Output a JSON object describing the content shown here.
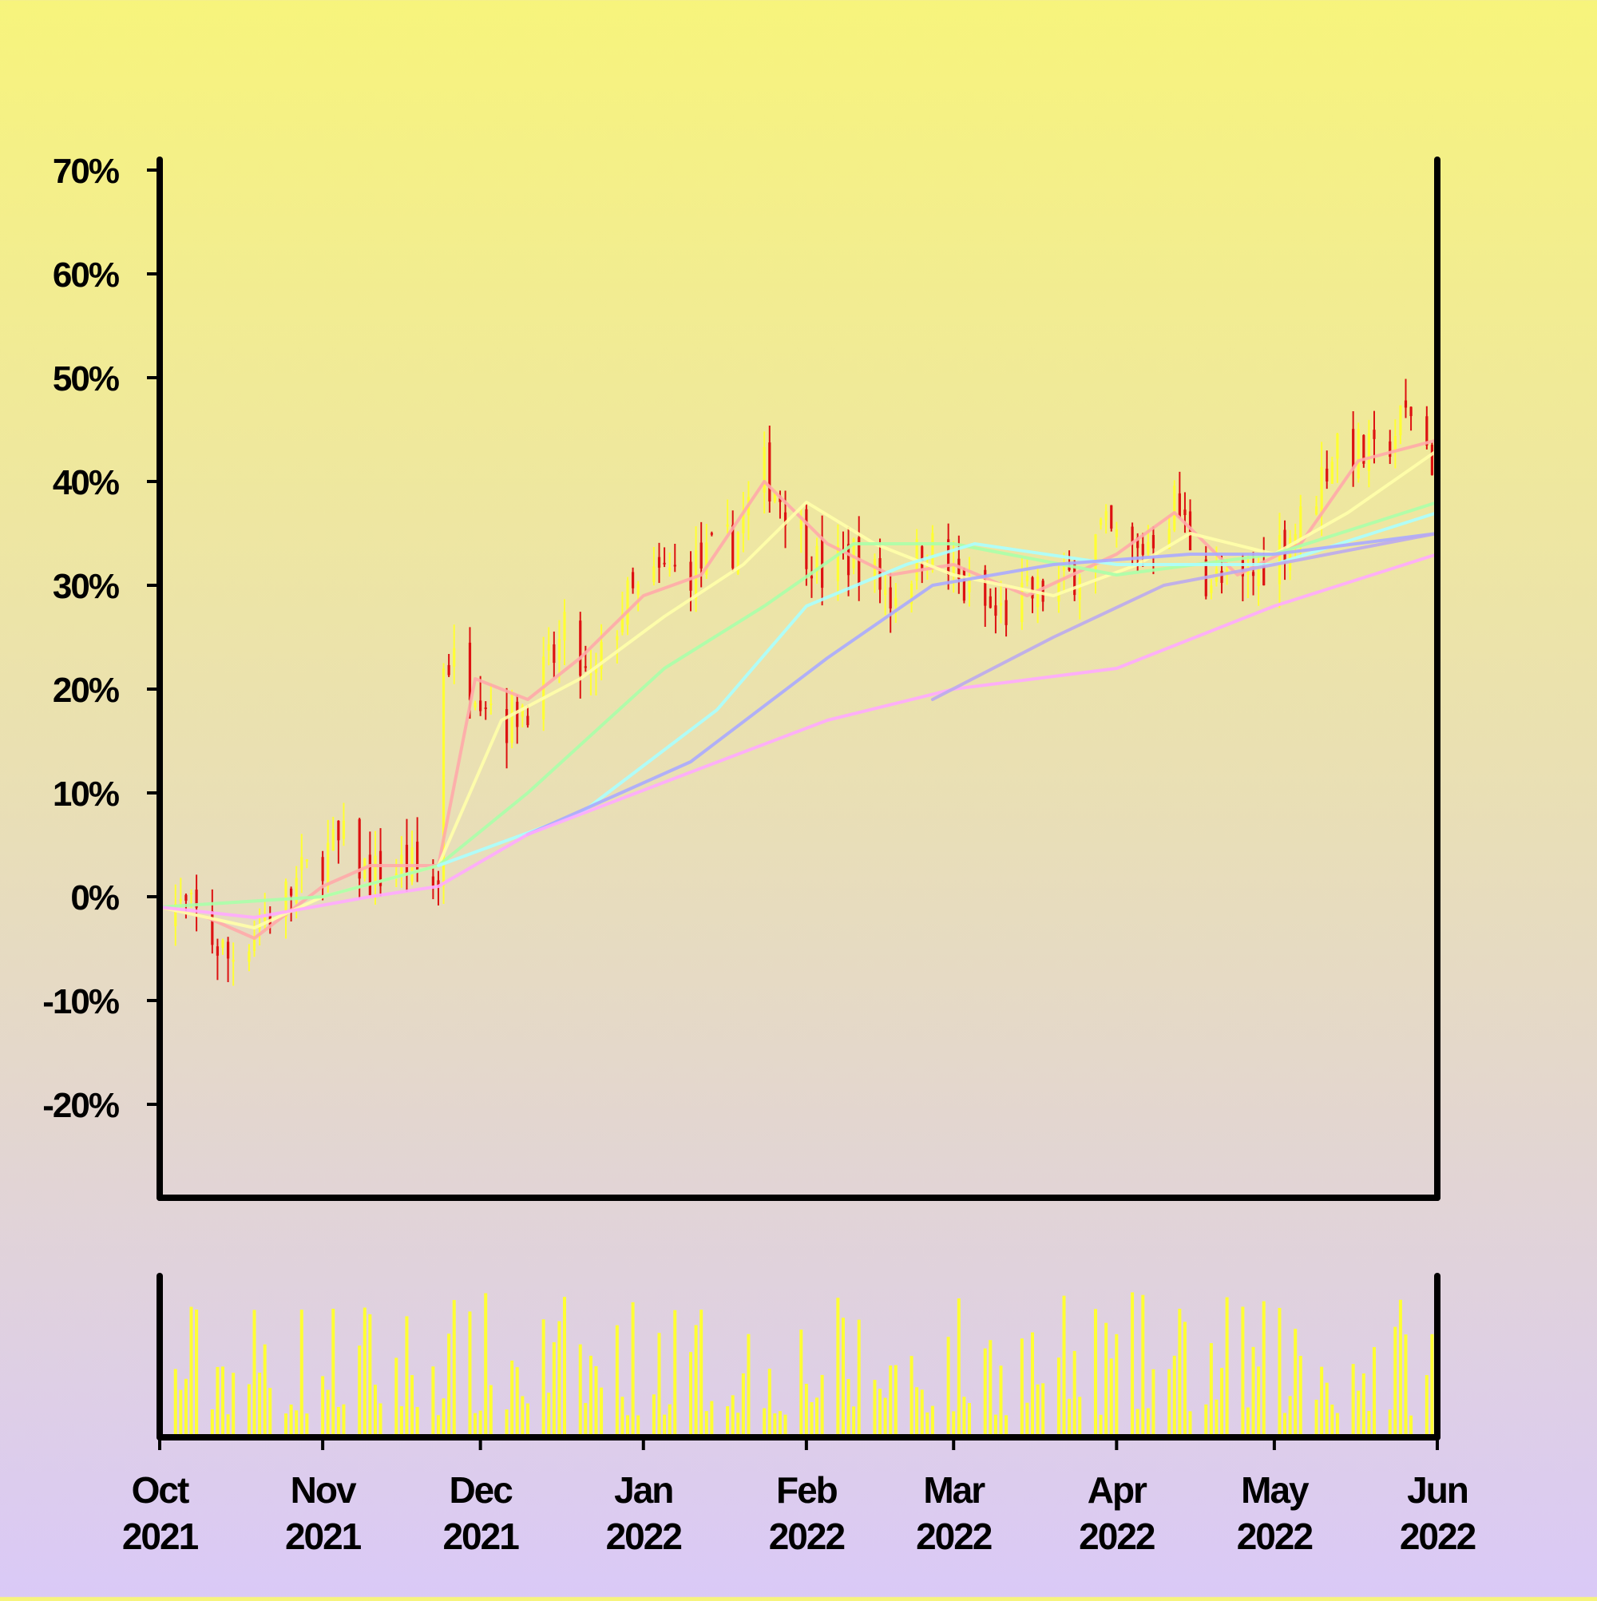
{
  "chart_data": {
    "type": "candlestick",
    "title": "",
    "xlabel": "",
    "ylabel": "",
    "y_unit": "%",
    "ylim": [
      -29,
      71
    ],
    "y_ticks": [
      {
        "value": 70,
        "label": "70%"
      },
      {
        "value": 60,
        "label": "60%"
      },
      {
        "value": 50,
        "label": "50%"
      },
      {
        "value": 40,
        "label": "40%"
      },
      {
        "value": 30,
        "label": "30%"
      },
      {
        "value": 20,
        "label": "20%"
      },
      {
        "value": 10,
        "label": "10%"
      },
      {
        "value": 0,
        "label": "0%"
      },
      {
        "value": -10,
        "label": "-10%"
      },
      {
        "value": -20,
        "label": "-20%"
      }
    ],
    "x_range": [
      "2021-10-01",
      "2022-06-01"
    ],
    "x_ticks": [
      {
        "date": "2021-10-01",
        "month": "Oct",
        "year": "2021"
      },
      {
        "date": "2021-11-01",
        "month": "Nov",
        "year": "2021"
      },
      {
        "date": "2021-12-01",
        "month": "Dec",
        "year": "2021"
      },
      {
        "date": "2022-01-01",
        "month": "Jan",
        "year": "2022"
      },
      {
        "date": "2022-02-01",
        "month": "Feb",
        "year": "2022"
      },
      {
        "date": "2022-03-01",
        "month": "Mar",
        "year": "2022"
      },
      {
        "date": "2022-04-01",
        "month": "Apr",
        "year": "2022"
      },
      {
        "date": "2022-05-01",
        "month": "May",
        "year": "2022"
      },
      {
        "date": "2022-06-01",
        "month": "Jun",
        "year": "2022"
      }
    ],
    "colors": {
      "up": "#ffff33",
      "down": "#dd1111",
      "volume": "#ffff33",
      "axis": "#000000",
      "background_top": "#f7f47c",
      "background_bottom": "#dac9f7"
    },
    "price_path": [
      {
        "date": "2021-10-01",
        "value": 0
      },
      {
        "date": "2021-10-08",
        "value": -2
      },
      {
        "date": "2021-10-14",
        "value": -6
      },
      {
        "date": "2021-10-19",
        "value": -3
      },
      {
        "date": "2021-10-25",
        "value": 0
      },
      {
        "date": "2021-11-01",
        "value": 4
      },
      {
        "date": "2021-11-05",
        "value": 5
      },
      {
        "date": "2021-11-10",
        "value": 2
      },
      {
        "date": "2021-11-17",
        "value": 3
      },
      {
        "date": "2021-11-23",
        "value": 1
      },
      {
        "date": "2021-11-24",
        "value": 23
      },
      {
        "date": "2021-11-30",
        "value": 21
      },
      {
        "date": "2021-12-06",
        "value": 17
      },
      {
        "date": "2021-12-12",
        "value": 20
      },
      {
        "date": "2021-12-17",
        "value": 25
      },
      {
        "date": "2021-12-22",
        "value": 20
      },
      {
        "date": "2021-12-28",
        "value": 28
      },
      {
        "date": "2022-01-05",
        "value": 31
      },
      {
        "date": "2022-01-12",
        "value": 32
      },
      {
        "date": "2022-01-18",
        "value": 34
      },
      {
        "date": "2022-01-24",
        "value": 41
      },
      {
        "date": "2022-01-28",
        "value": 38
      },
      {
        "date": "2022-02-04",
        "value": 31
      },
      {
        "date": "2022-02-10",
        "value": 33
      },
      {
        "date": "2022-02-17",
        "value": 29
      },
      {
        "date": "2022-02-24",
        "value": 34
      },
      {
        "date": "2022-03-02",
        "value": 30
      },
      {
        "date": "2022-03-09",
        "value": 27
      },
      {
        "date": "2022-03-16",
        "value": 29
      },
      {
        "date": "2022-03-22",
        "value": 30
      },
      {
        "date": "2022-03-29",
        "value": 35
      },
      {
        "date": "2022-04-05",
        "value": 33
      },
      {
        "date": "2022-04-12",
        "value": 38
      },
      {
        "date": "2022-04-18",
        "value": 31
      },
      {
        "date": "2022-04-24",
        "value": 29
      },
      {
        "date": "2022-04-30",
        "value": 33
      },
      {
        "date": "2022-05-06",
        "value": 36
      },
      {
        "date": "2022-05-13",
        "value": 44
      },
      {
        "date": "2022-05-20",
        "value": 42
      },
      {
        "date": "2022-05-27",
        "value": 47
      },
      {
        "date": "2022-06-01",
        "value": 41
      }
    ],
    "moving_averages": [
      {
        "color": "#ffaaaa",
        "points": [
          {
            "date": "2021-10-01",
            "value": -1
          },
          {
            "date": "2021-10-10",
            "value": -2
          },
          {
            "date": "2021-10-19",
            "value": -4
          },
          {
            "date": "2021-11-01",
            "value": 1
          },
          {
            "date": "2021-11-10",
            "value": 3
          },
          {
            "date": "2021-11-23",
            "value": 3
          },
          {
            "date": "2021-11-30",
            "value": 21
          },
          {
            "date": "2021-12-10",
            "value": 19
          },
          {
            "date": "2021-12-20",
            "value": 23
          },
          {
            "date": "2022-01-01",
            "value": 29
          },
          {
            "date": "2022-01-12",
            "value": 31
          },
          {
            "date": "2022-01-24",
            "value": 40
          },
          {
            "date": "2022-02-05",
            "value": 34
          },
          {
            "date": "2022-02-17",
            "value": 31
          },
          {
            "date": "2022-03-01",
            "value": 32
          },
          {
            "date": "2022-03-15",
            "value": 29
          },
          {
            "date": "2022-04-01",
            "value": 33
          },
          {
            "date": "2022-04-12",
            "value": 37
          },
          {
            "date": "2022-04-24",
            "value": 31
          },
          {
            "date": "2022-05-06",
            "value": 34
          },
          {
            "date": "2022-05-17",
            "value": 42
          },
          {
            "date": "2022-06-01",
            "value": 44
          }
        ]
      },
      {
        "color": "#ffffaa",
        "points": [
          {
            "date": "2021-10-01",
            "value": -1
          },
          {
            "date": "2021-10-19",
            "value": -3
          },
          {
            "date": "2021-11-01",
            "value": 0
          },
          {
            "date": "2021-11-23",
            "value": 3
          },
          {
            "date": "2021-12-05",
            "value": 17
          },
          {
            "date": "2021-12-20",
            "value": 21
          },
          {
            "date": "2022-01-05",
            "value": 27
          },
          {
            "date": "2022-01-20",
            "value": 32
          },
          {
            "date": "2022-02-01",
            "value": 38
          },
          {
            "date": "2022-02-14",
            "value": 34
          },
          {
            "date": "2022-03-01",
            "value": 31
          },
          {
            "date": "2022-03-20",
            "value": 29
          },
          {
            "date": "2022-04-05",
            "value": 32
          },
          {
            "date": "2022-04-15",
            "value": 35
          },
          {
            "date": "2022-05-01",
            "value": 33
          },
          {
            "date": "2022-05-15",
            "value": 37
          },
          {
            "date": "2022-06-01",
            "value": 43
          }
        ]
      },
      {
        "color": "#aaffaa",
        "points": [
          {
            "date": "2021-10-01",
            "value": -1
          },
          {
            "date": "2021-11-01",
            "value": 0
          },
          {
            "date": "2021-11-23",
            "value": 3
          },
          {
            "date": "2021-12-10",
            "value": 10
          },
          {
            "date": "2022-01-05",
            "value": 22
          },
          {
            "date": "2022-01-24",
            "value": 28
          },
          {
            "date": "2022-02-10",
            "value": 34
          },
          {
            "date": "2022-03-01",
            "value": 34
          },
          {
            "date": "2022-04-01",
            "value": 31
          },
          {
            "date": "2022-05-01",
            "value": 33
          },
          {
            "date": "2022-06-01",
            "value": 38
          }
        ]
      },
      {
        "color": "#aaffff",
        "points": [
          {
            "date": "2021-11-23",
            "value": 3
          },
          {
            "date": "2021-12-20",
            "value": 8
          },
          {
            "date": "2022-01-15",
            "value": 18
          },
          {
            "date": "2022-02-01",
            "value": 28
          },
          {
            "date": "2022-02-20",
            "value": 32
          },
          {
            "date": "2022-03-05",
            "value": 34
          },
          {
            "date": "2022-04-01",
            "value": 32
          },
          {
            "date": "2022-05-01",
            "value": 32
          },
          {
            "date": "2022-06-01",
            "value": 37
          }
        ]
      },
      {
        "color": "#aaaaff",
        "points": [
          {
            "date": "2021-12-10",
            "value": 6
          },
          {
            "date": "2022-01-10",
            "value": 13
          },
          {
            "date": "2022-02-05",
            "value": 23
          },
          {
            "date": "2022-02-25",
            "value": 30
          },
          {
            "date": "2022-03-20",
            "value": 32
          },
          {
            "date": "2022-04-15",
            "value": 33
          },
          {
            "date": "2022-05-01",
            "value": 33
          },
          {
            "date": "2022-06-01",
            "value": 35
          }
        ]
      },
      {
        "color": "#ffaaff",
        "points": [
          {
            "date": "2021-10-01",
            "value": -1
          },
          {
            "date": "2021-10-19",
            "value": -2
          },
          {
            "date": "2021-11-10",
            "value": 0
          },
          {
            "date": "2021-11-23",
            "value": 1
          },
          {
            "date": "2021-12-10",
            "value": 6
          },
          {
            "date": "2022-01-10",
            "value": 12
          },
          {
            "date": "2022-02-05",
            "value": 17
          },
          {
            "date": "2022-03-01",
            "value": 20
          },
          {
            "date": "2022-04-01",
            "value": 22
          },
          {
            "date": "2022-05-01",
            "value": 28
          },
          {
            "date": "2022-06-01",
            "value": 33
          }
        ]
      },
      {
        "color": "#bbaaee",
        "points": [
          {
            "date": "2022-02-25",
            "value": 19
          },
          {
            "date": "2022-03-20",
            "value": 25
          },
          {
            "date": "2022-04-10",
            "value": 30
          },
          {
            "date": "2022-05-01",
            "value": 32
          },
          {
            "date": "2022-06-01",
            "value": 35
          }
        ]
      }
    ],
    "volume_note": "relative daily volume bars (0–1 of panel max)",
    "volume_seed": 7
  }
}
